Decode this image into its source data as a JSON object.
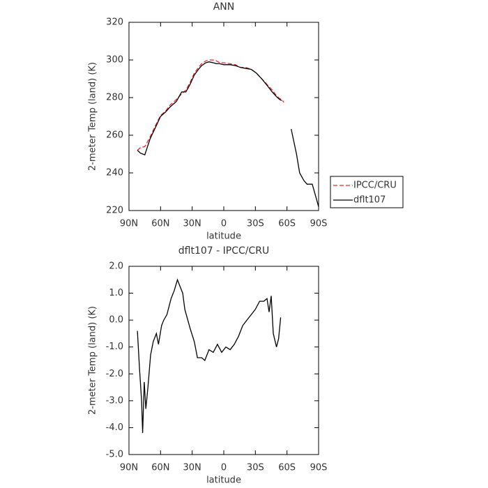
{
  "chart_data": [
    {
      "type": "line",
      "title": "ANN",
      "x_label": "latitude",
      "y_label": "2-meter Temp (land) (K)",
      "x": [
        82,
        79,
        75,
        70,
        65,
        60,
        55,
        51,
        45,
        40,
        36,
        32,
        28,
        24,
        21,
        17,
        14,
        10,
        7,
        4,
        0,
        -6,
        -11,
        -16,
        -21,
        -26,
        -31,
        -36,
        -41,
        -46,
        -50,
        -53,
        -55,
        -57,
        -64,
        -69,
        -72,
        -76,
        -79,
        -84,
        -87,
        -90
      ],
      "series": [
        {
          "name": "IPCC/CRU",
          "color": "#e8262a",
          "dash": true,
          "values": [
            252,
            253.5,
            254,
            259,
            265,
            270.5,
            273,
            276,
            279,
            282,
            284,
            288,
            293,
            296,
            298,
            299.5,
            300,
            300,
            299.5,
            298.5,
            298.5,
            298,
            297.5,
            296,
            296,
            295,
            293,
            290,
            287,
            284,
            281,
            279.5,
            279,
            277.5,
            null,
            null,
            null,
            null,
            null,
            null,
            null,
            null
          ]
        },
        {
          "name": "dflt107",
          "color": "#000000",
          "dash": false,
          "values": [
            252,
            250.5,
            249.6,
            258,
            264,
            270,
            272.5,
            275,
            278,
            283,
            283,
            287,
            292,
            295,
            297,
            298.5,
            299,
            298.5,
            298,
            298,
            297.5,
            297.5,
            297,
            296,
            295.5,
            295,
            293,
            290,
            286.5,
            283,
            280.5,
            279,
            278.5,
            null,
            263.3,
            250,
            240,
            236,
            234,
            234,
            228,
            222
          ]
        }
      ],
      "xlim": [
        90,
        -90
      ],
      "ylim": [
        220,
        320
      ],
      "xticks": [
        {
          "value": 90,
          "label": "90N"
        },
        {
          "value": 60,
          "label": "60N"
        },
        {
          "value": 30,
          "label": "30N"
        },
        0,
        {
          "value": -30,
          "label": "30S"
        },
        {
          "value": -60,
          "label": "60S"
        },
        {
          "value": -90,
          "label": "90S"
        }
      ],
      "yticks": [
        220,
        240,
        260,
        280,
        300,
        320
      ],
      "legend": "right"
    },
    {
      "type": "line",
      "title": "dflt107 - IPCC/CRU",
      "x_label": "latitude",
      "y_label": "2-meter Temp (land) (K)",
      "x": [
        82,
        80,
        78,
        77,
        75.5,
        74,
        72,
        69.5,
        67,
        64,
        62,
        59,
        57,
        54,
        50,
        47,
        44,
        42,
        39,
        37,
        32,
        28,
        25,
        21,
        18,
        14,
        10,
        6,
        2,
        -2,
        -6,
        -10,
        -14,
        -18,
        -22,
        -26,
        -30,
        -34,
        -38,
        -41,
        -43,
        -45,
        -47,
        -50,
        -52,
        -54
      ],
      "values": [
        -0.4,
        -1.8,
        -3.0,
        -4.2,
        -2.3,
        -3.3,
        -2.5,
        -1.3,
        -0.8,
        -0.5,
        -0.9,
        -0.2,
        0.0,
        0.2,
        0.8,
        1.1,
        1.5,
        1.3,
        1.0,
        0.4,
        -0.3,
        -0.8,
        -1.4,
        -1.4,
        -1.5,
        -1.1,
        -1.2,
        -0.9,
        -1.2,
        -1.0,
        -1.1,
        -0.9,
        -0.6,
        -0.2,
        0.0,
        0.2,
        0.4,
        0.7,
        0.7,
        0.8,
        0.3,
        0.9,
        -0.5,
        -1.0,
        -0.7,
        0.1
      ],
      "color": "#000000",
      "xlim": [
        90,
        -90
      ],
      "ylim": [
        -5,
        2
      ],
      "xticks": [
        {
          "value": 90,
          "label": "90N"
        },
        {
          "value": 60,
          "label": "60N"
        },
        {
          "value": 30,
          "label": "30N"
        },
        0,
        {
          "value": -30,
          "label": "30S"
        },
        {
          "value": -60,
          "label": "60S"
        },
        {
          "value": -90,
          "label": "90S"
        }
      ],
      "yticks": [
        {
          "value": -5,
          "label": "-5.0"
        },
        {
          "value": -4,
          "label": "-4.0"
        },
        {
          "value": -3,
          "label": "-3.0"
        },
        {
          "value": -2,
          "label": "-2.0"
        },
        {
          "value": -1,
          "label": "-1.0"
        },
        {
          "value": 0,
          "label": "0.0"
        },
        {
          "value": 1,
          "label": "1.0"
        },
        {
          "value": 2,
          "label": "2.0"
        }
      ]
    }
  ]
}
